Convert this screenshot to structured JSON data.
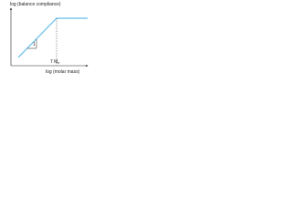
{
  "y_axis_label": "log (balance compliance)",
  "x_axis_label": "log (molar mass)",
  "slope_label": "1",
  "marker_label": {
    "main": "7 M",
    "subscript": "e"
  }
}
